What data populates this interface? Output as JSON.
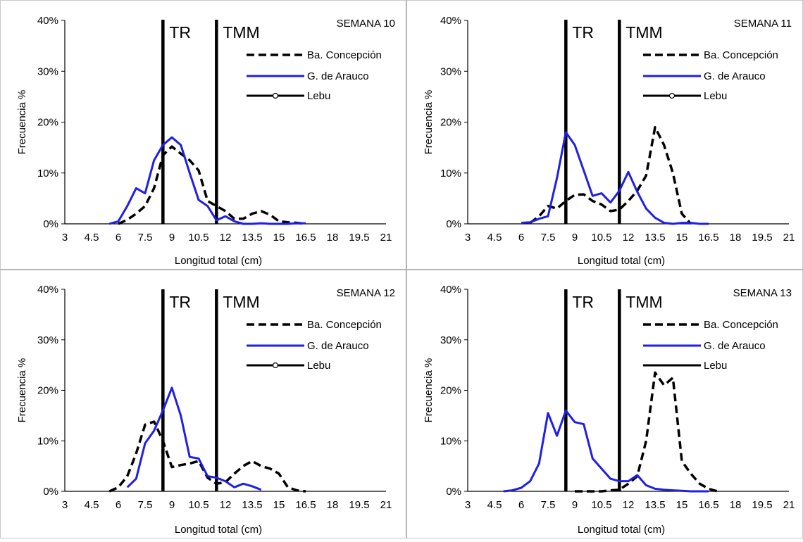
{
  "chart_data": [
    {
      "type": "line",
      "title": "SEMANA 10",
      "xlabel": "Longitud total (cm)",
      "ylabel": "Frecuencia %",
      "x_ticks": [
        "3",
        "4.5",
        "6",
        "7.5",
        "9",
        "10.5",
        "12",
        "13.5",
        "15",
        "16.5",
        "18",
        "19.5",
        "21"
      ],
      "y_ticks": [
        "0%",
        "10%",
        "20%",
        "30%",
        "40%"
      ],
      "xlim": [
        3,
        21
      ],
      "ylim": [
        0,
        40
      ],
      "vlines": [
        {
          "label": "TR",
          "x": 8.5
        },
        {
          "label": "TMM",
          "x": 11.5
        }
      ],
      "legend": [
        {
          "name": "Ba. Concepción",
          "style": "dashed"
        },
        {
          "name": "G. de Arauco",
          "style": "blue"
        },
        {
          "name": "Lebu",
          "style": "marker"
        }
      ],
      "series": [
        {
          "name": "Ba. Concepción",
          "color": "#000000",
          "dash": true,
          "x": [
            6,
            6.5,
            7,
            7.5,
            8,
            8.5,
            9,
            9.5,
            10,
            10.5,
            11,
            11.5,
            12,
            12.5,
            13,
            13.5,
            14,
            14.5,
            15,
            15.5,
            16,
            16.5
          ],
          "y": [
            0,
            0.8,
            2,
            3.5,
            7,
            13.5,
            15.2,
            13.8,
            12.5,
            10.5,
            4.5,
            3.5,
            2.5,
            1,
            1,
            2,
            2.5,
            1.8,
            0.5,
            0.3,
            0.2,
            0
          ]
        },
        {
          "name": "G. de Arauco",
          "color": "#1f1fe6",
          "dash": false,
          "x": [
            5.5,
            6,
            6.5,
            7,
            7.5,
            8,
            8.5,
            9,
            9.5,
            10,
            10.5,
            11,
            11.5,
            12,
            12.5,
            13,
            13.5,
            14,
            14.5,
            15,
            15.5,
            16,
            16.5
          ],
          "y": [
            0,
            0.5,
            3.5,
            7,
            6,
            12.5,
            15.5,
            17,
            15.5,
            10,
            4.7,
            3.5,
            0.7,
            1.5,
            0.5,
            0,
            0,
            0.1,
            0,
            0,
            0,
            0.1,
            0.1
          ]
        }
      ]
    },
    {
      "type": "line",
      "title": "SEMANA 11",
      "xlabel": "Longitud total (cm)",
      "ylabel": "Frecuencia %",
      "x_ticks": [
        "3",
        "4.5",
        "6",
        "7.5",
        "9",
        "10.5",
        "12",
        "13.5",
        "15",
        "16.5",
        "18",
        "19.5",
        "21"
      ],
      "y_ticks": [
        "0%",
        "10%",
        "20%",
        "30%",
        "40%"
      ],
      "xlim": [
        3,
        21
      ],
      "ylim": [
        0,
        40
      ],
      "vlines": [
        {
          "label": "TR",
          "x": 8.5
        },
        {
          "label": "TMM",
          "x": 11.5
        }
      ],
      "legend": [
        {
          "name": "Ba. Concepción",
          "style": "dashed"
        },
        {
          "name": "G. de Arauco",
          "style": "blue"
        },
        {
          "name": "Lebu",
          "style": "marker"
        }
      ],
      "series": [
        {
          "name": "Ba. Concepción",
          "color": "#000000",
          "dash": true,
          "x": [
            6.5,
            7,
            7.5,
            8,
            8.5,
            9,
            9.5,
            10,
            10.5,
            11,
            11.5,
            12,
            12.5,
            13,
            13.5,
            14,
            14.5,
            15,
            15.5
          ],
          "y": [
            0.2,
            1.5,
            3.5,
            3,
            4.5,
            5.7,
            5.8,
            4.5,
            3.8,
            2.5,
            2.8,
            4.5,
            6.5,
            9.5,
            19,
            15.5,
            10,
            2,
            0
          ]
        },
        {
          "name": "G. de Arauco",
          "color": "#1f1fe6",
          "dash": false,
          "x": [
            6,
            6.5,
            7,
            7.5,
            8,
            8.5,
            9,
            9.5,
            10,
            10.5,
            11,
            11.5,
            12,
            12.5,
            13,
            13.5,
            14,
            14.5,
            15,
            15.5,
            16,
            16.5
          ],
          "y": [
            0.2,
            0.3,
            1,
            1.5,
            9,
            18,
            15.5,
            10.5,
            5.5,
            6,
            4.2,
            6.5,
            10.2,
            6.3,
            3,
            1.2,
            0.2,
            0,
            0.2,
            0.2,
            0,
            0
          ]
        }
      ]
    },
    {
      "type": "line",
      "title": "SEMANA 12",
      "xlabel": "Longitud total (cm)",
      "ylabel": "Frecuencia %",
      "x_ticks": [
        "3",
        "4.5",
        "6",
        "7.5",
        "9",
        "10.5",
        "12",
        "13.5",
        "15",
        "16.5",
        "18",
        "19.5",
        "21"
      ],
      "y_ticks": [
        "0%",
        "10%",
        "20%",
        "30%",
        "40%"
      ],
      "xlim": [
        3,
        21
      ],
      "ylim": [
        0,
        40
      ],
      "vlines": [
        {
          "label": "TR",
          "x": 8.5
        },
        {
          "label": "TMM",
          "x": 11.5
        }
      ],
      "legend": [
        {
          "name": "Ba. Concepción",
          "style": "dashed"
        },
        {
          "name": "G. de Arauco",
          "style": "blue"
        },
        {
          "name": "Lebu",
          "style": "marker"
        }
      ],
      "series": [
        {
          "name": "Ba. Concepción",
          "color": "#000000",
          "dash": true,
          "x": [
            5.5,
            6,
            6.5,
            7,
            7.5,
            8,
            8.5,
            9,
            9.5,
            10,
            10.5,
            11,
            11.5,
            12,
            12.5,
            13,
            13.5,
            14,
            14.5,
            15,
            15.5,
            16,
            16.5
          ],
          "y": [
            0,
            0.8,
            3,
            7.5,
            13.2,
            13.8,
            10,
            4.8,
            5.2,
            5.5,
            6,
            2.7,
            1.5,
            1.8,
            3.5,
            5,
            6,
            5,
            4.5,
            3.5,
            0.8,
            0.2,
            0
          ]
        },
        {
          "name": "G. de Arauco",
          "color": "#1f1fe6",
          "dash": false,
          "x": [
            6.5,
            7,
            7.5,
            8,
            8.5,
            9,
            9.5,
            10,
            10.5,
            11,
            11.5,
            12,
            12.5,
            13,
            13.5,
            14
          ],
          "y": [
            0.8,
            2.5,
            9.5,
            12,
            16,
            20.5,
            15,
            6.8,
            6.5,
            3,
            2.7,
            2,
            0.8,
            1.5,
            1,
            0.3
          ]
        }
      ]
    },
    {
      "type": "line",
      "title": "SEMANA 13",
      "xlabel": "Longitud total (cm)",
      "ylabel": "Frecuencia %",
      "x_ticks": [
        "3",
        "4.5",
        "6",
        "7.5",
        "9",
        "10.5",
        "12",
        "13.5",
        "15",
        "16.5",
        "18",
        "19.5",
        "21"
      ],
      "y_ticks": [
        "0%",
        "10%",
        "20%",
        "30%",
        "40%"
      ],
      "xlim": [
        3,
        21
      ],
      "ylim": [
        0,
        40
      ],
      "vlines": [
        {
          "label": "TR",
          "x": 8.5
        },
        {
          "label": "TMM",
          "x": 11.5
        }
      ],
      "legend": [
        {
          "name": "Ba. Concepción",
          "style": "dashed"
        },
        {
          "name": "G. de Arauco",
          "style": "blue"
        },
        {
          "name": "Lebu",
          "style": "line"
        }
      ],
      "series": [
        {
          "name": "Ba. Concepción",
          "color": "#000000",
          "dash": true,
          "x": [
            9,
            9.5,
            10,
            10.5,
            11,
            11.5,
            12,
            12.5,
            13,
            13.5,
            14,
            14.5,
            15,
            15.5,
            16,
            16.5,
            17
          ],
          "y": [
            0,
            0,
            0,
            0,
            0.2,
            0.3,
            1.5,
            3,
            10,
            23.5,
            21,
            22.5,
            6,
            3.5,
            1.5,
            0.5,
            0
          ]
        },
        {
          "name": "G. de Arauco",
          "color": "#1f1fe6",
          "dash": false,
          "x": [
            5,
            5.5,
            6,
            6.5,
            7,
            7.5,
            8,
            8.5,
            9,
            9.5,
            10,
            10.5,
            11,
            11.5,
            12,
            12.5,
            13,
            13.5,
            14,
            14.5,
            15,
            15.5,
            16,
            16.5
          ],
          "y": [
            0,
            0.2,
            0.7,
            2,
            5.5,
            15.5,
            11,
            16,
            13.7,
            13.3,
            6.5,
            4.5,
            2.5,
            2,
            2,
            3.2,
            1.2,
            0.5,
            0.3,
            0.2,
            0.1,
            0,
            0,
            0
          ]
        }
      ]
    }
  ]
}
